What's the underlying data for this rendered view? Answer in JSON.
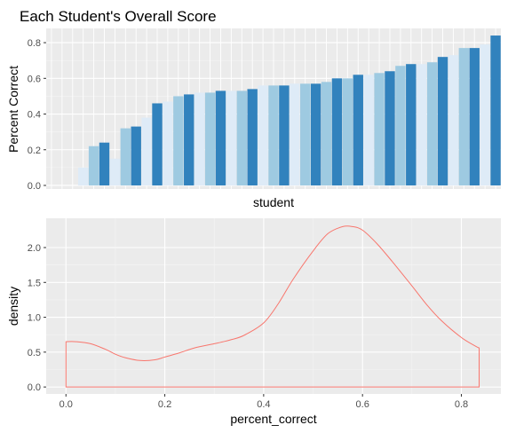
{
  "chart_data": [
    {
      "type": "bar",
      "title": "Each Student's Overall Score",
      "xlabel": "student",
      "ylabel": "Percent Correct",
      "ylim": [
        -0.02,
        0.88
      ],
      "y_ticks": [
        "0.0",
        "0.2",
        "0.4",
        "0.6",
        "0.8"
      ],
      "grid": true,
      "legend": "none",
      "colors": {
        "panel": "#ebebeb",
        "light": "#deebf7",
        "mid": "#9ecae1",
        "dark": "#3182bd"
      },
      "values": [
        0.0,
        0.0,
        0.0,
        0.1,
        0.22,
        0.24,
        0.15,
        0.32,
        0.33,
        0.38,
        0.46,
        0.47,
        0.5,
        0.51,
        0.52,
        0.52,
        0.53,
        0.53,
        0.53,
        0.54,
        0.56,
        0.56,
        0.56,
        0.57,
        0.57,
        0.57,
        0.58,
        0.6,
        0.6,
        0.62,
        0.62,
        0.63,
        0.64,
        0.67,
        0.68,
        0.68,
        0.69,
        0.72,
        0.73,
        0.77,
        0.77,
        0.79,
        0.84
      ],
      "shades": [
        "light",
        "light",
        "light",
        "light",
        "mid",
        "dark",
        "light",
        "mid",
        "dark",
        "light",
        "dark",
        "light",
        "mid",
        "dark",
        "light",
        "mid",
        "dark",
        "light",
        "mid",
        "dark",
        "light",
        "mid",
        "dark",
        "light",
        "mid",
        "dark",
        "mid",
        "dark",
        "mid",
        "dark",
        "light",
        "mid",
        "dark",
        "mid",
        "dark",
        "light",
        "mid",
        "dark",
        "light",
        "mid",
        "dark",
        "light",
        "dark"
      ]
    },
    {
      "type": "area",
      "xlabel": "percent_correct",
      "ylabel": "density",
      "xlim": [
        -0.04,
        0.88
      ],
      "ylim": [
        -0.1,
        2.42
      ],
      "x_ticks": [
        "0.0",
        "0.2",
        "0.4",
        "0.6",
        "0.8"
      ],
      "y_ticks": [
        "0.0",
        "0.5",
        "1.0",
        "1.5",
        "2.0"
      ],
      "grid": true,
      "legend": "none",
      "line_color": "#f8766d",
      "x": [
        0.0,
        0.02,
        0.05,
        0.08,
        0.1,
        0.12,
        0.15,
        0.18,
        0.2,
        0.23,
        0.26,
        0.3,
        0.33,
        0.36,
        0.4,
        0.43,
        0.46,
        0.5,
        0.53,
        0.56,
        0.58,
        0.6,
        0.63,
        0.66,
        0.7,
        0.73,
        0.76,
        0.8,
        0.83,
        0.836
      ],
      "y": [
        0.65,
        0.65,
        0.62,
        0.54,
        0.47,
        0.42,
        0.38,
        0.39,
        0.43,
        0.49,
        0.56,
        0.62,
        0.67,
        0.74,
        0.92,
        1.2,
        1.55,
        1.95,
        2.2,
        2.3,
        2.3,
        2.25,
        2.05,
        1.8,
        1.45,
        1.18,
        0.95,
        0.71,
        0.58,
        0.56
      ]
    }
  ]
}
